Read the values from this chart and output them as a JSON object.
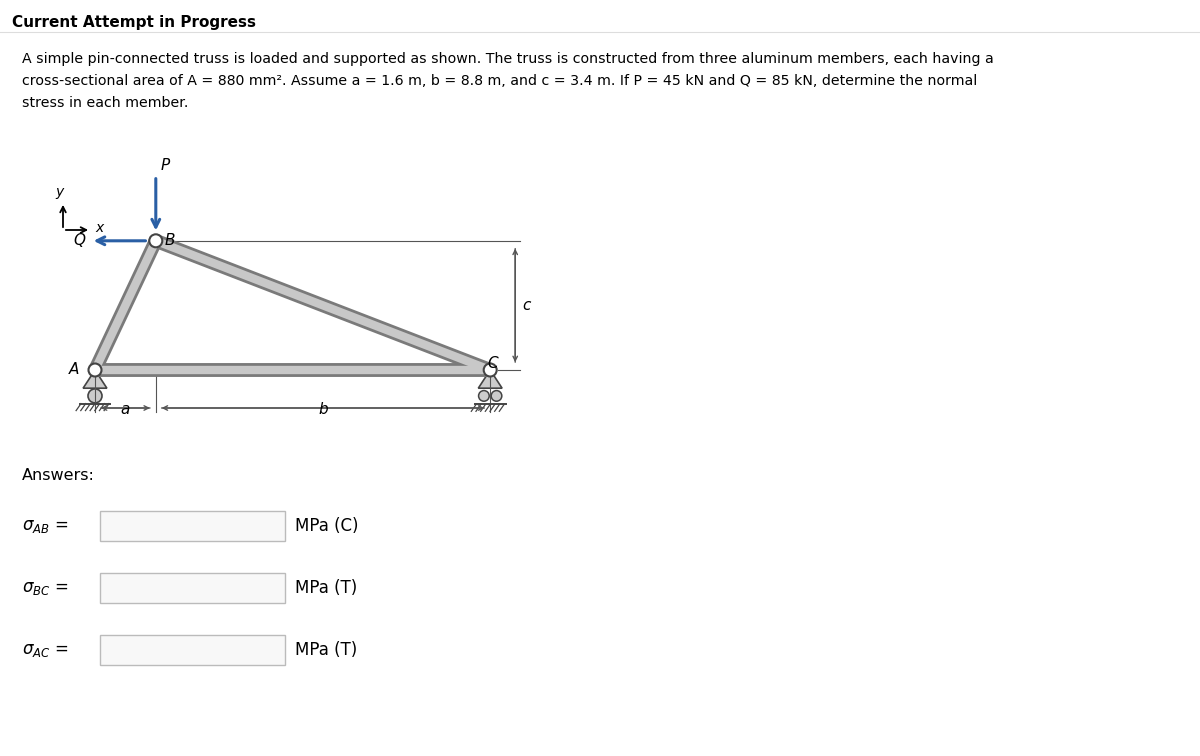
{
  "title": "Current Attempt in Progress",
  "line1": "A simple pin-connected truss is loaded and supported as shown. The truss is constructed from three aluminum members, each having a",
  "line2": "cross-sectional area of A = 880 mm². Assume a = 1.6 m, b = 8.8 m, and c = 3.4 m. If P = 45 kN and Q = 85 kN, determine the normal",
  "line3": "stress in each member.",
  "answers_label": "Answers:",
  "unit_AB": "MPa (C)",
  "unit_BC": "MPa (T)",
  "unit_AC": "MPa (T)",
  "bg_color": "#ffffff",
  "text_color": "#000000",
  "member_dark": "#7a7a7a",
  "member_light": "#c8c8c8",
  "pin_fill": "#ffffff",
  "pin_edge": "#444444",
  "support_fill": "#cccccc",
  "support_edge": "#444444",
  "arrow_color": "#2a5fa5",
  "dim_color": "#555555",
  "box_edge": "#bbbbbb",
  "box_fill": "#f8f8f8",
  "truss_lw": 10,
  "truss_inner_lw": 6
}
